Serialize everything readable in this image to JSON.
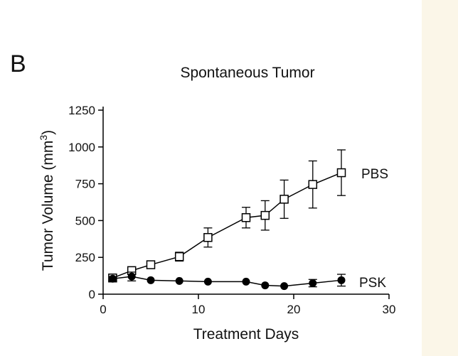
{
  "panel_label": "B",
  "chart_data": {
    "type": "line",
    "title": "Spontaneous Tumor",
    "xlabel": "Treatment Days",
    "ylabel_main": "Tumor Volume (mm",
    "ylabel_sup": "3",
    "ylabel_close": ")",
    "xlim": [
      0,
      30
    ],
    "ylim": [
      0,
      1250
    ],
    "xticks": [
      "0",
      "10",
      "20",
      "30"
    ],
    "yticks": [
      "0",
      "250",
      "500",
      "750",
      "1000",
      "1250"
    ],
    "series": [
      {
        "name": "PBS",
        "marker": "open-square",
        "x": [
          1,
          3,
          5,
          8,
          11,
          15,
          17,
          19,
          22,
          25
        ],
        "y": [
          110,
          160,
          200,
          255,
          385,
          520,
          535,
          645,
          745,
          825
        ],
        "err": [
          20,
          25,
          25,
          30,
          65,
          70,
          100,
          130,
          160,
          155
        ]
      },
      {
        "name": "PSK",
        "marker": "filled-circle",
        "x": [
          1,
          3,
          5,
          8,
          11,
          15,
          17,
          19,
          22,
          25
        ],
        "y": [
          105,
          120,
          95,
          90,
          85,
          85,
          60,
          55,
          75,
          95
        ],
        "err": [
          15,
          30,
          0,
          0,
          0,
          0,
          0,
          0,
          25,
          40
        ]
      }
    ],
    "grid": false
  }
}
